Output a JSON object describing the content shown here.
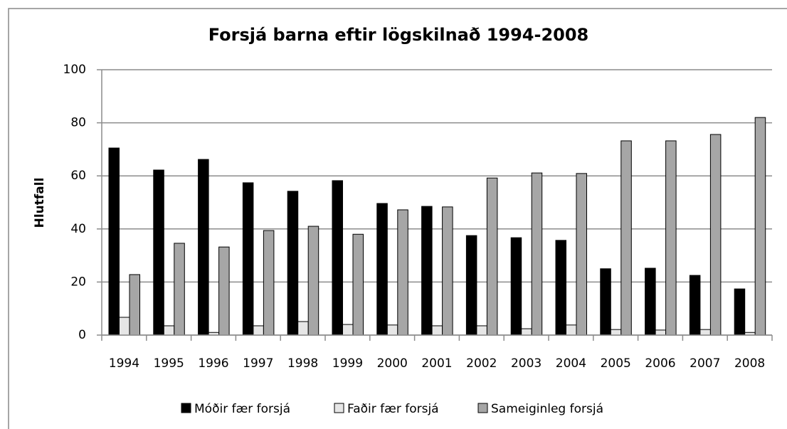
{
  "chart_data": {
    "type": "bar",
    "title": "Forsjá barna eftir lögskilnað 1994-2008",
    "y_label": "Hlutfall",
    "categories": [
      "1994",
      "1995",
      "1996",
      "1997",
      "1998",
      "1999",
      "2000",
      "2001",
      "2002",
      "2003",
      "2004",
      "2005",
      "2006",
      "2007",
      "2008"
    ],
    "series": [
      {
        "name": "Móðir fær forsjá",
        "color": "#000000",
        "values": [
          70.5,
          62.2,
          66.2,
          57.4,
          54.2,
          58.2,
          49.6,
          48.5,
          37.5,
          36.7,
          35.7,
          25.0,
          25.2,
          22.5,
          17.4
        ]
      },
      {
        "name": "Faðir fær forsjá",
        "color": "#e6e6e6",
        "values": [
          6.7,
          3.5,
          1.0,
          3.5,
          5.1,
          4.0,
          3.8,
          3.5,
          3.5,
          2.4,
          3.8,
          2.1,
          1.9,
          2.1,
          1.0
        ]
      },
      {
        "name": "Sameiginleg forsjá",
        "color": "#a6a6a6",
        "values": [
          22.8,
          34.6,
          33.2,
          39.4,
          41.0,
          38.0,
          47.2,
          48.3,
          59.2,
          61.1,
          60.9,
          73.2,
          73.2,
          75.6,
          82.0
        ]
      }
    ],
    "ylim": [
      0,
      100
    ],
    "yticks": [
      0,
      20,
      40,
      60,
      80,
      100
    ],
    "grid": true,
    "legend": "bottom"
  }
}
